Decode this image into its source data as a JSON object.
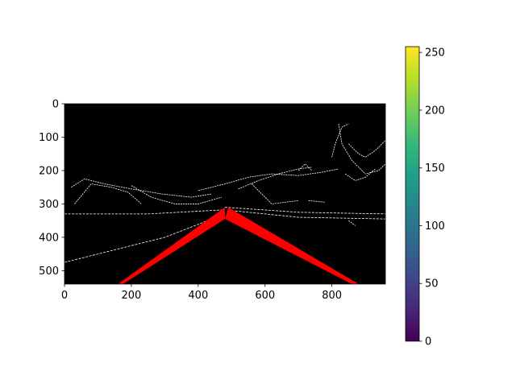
{
  "chart_data": [
    {
      "type": "heatmap",
      "title": "",
      "xlabel": "",
      "ylabel": "",
      "xlim": [
        0,
        960
      ],
      "ylim": [
        540,
        0
      ],
      "x_ticks": [
        0,
        200,
        400,
        600,
        800
      ],
      "y_ticks": [
        0,
        100,
        200,
        300,
        400,
        500
      ],
      "x_tick_labels": [
        "0",
        "200",
        "400",
        "600",
        "800"
      ],
      "y_tick_labels": [
        "0",
        "100",
        "200",
        "300",
        "400",
        "500"
      ],
      "background_color": "#000000",
      "edge_color": "#ffffff",
      "overlay": {
        "type": "line",
        "color": "#ff0000",
        "segments": [
          {
            "x": [
              160,
              480
            ],
            "y": [
              540,
              310
            ]
          },
          {
            "x": [
              175,
              480
            ],
            "y": [
              540,
              345
            ]
          },
          {
            "x": [
              490,
              880
            ],
            "y": [
              310,
              540
            ]
          },
          {
            "x": [
              480,
              860
            ],
            "y": [
              345,
              540
            ]
          },
          {
            "x": [
              500,
              630
            ],
            "y": [
              345,
              395
            ]
          }
        ]
      },
      "edge_segments": [
        {
          "x": [
            0,
            300,
            480
          ],
          "y": [
            475,
            400,
            330
          ]
        },
        {
          "x": [
            0,
            250,
            470
          ],
          "y": [
            330,
            330,
            318
          ]
        },
        {
          "x": [
            480,
            700,
            960
          ],
          "y": [
            310,
            325,
            330
          ]
        },
        {
          "x": [
            500,
            700,
            960
          ],
          "y": [
            320,
            340,
            345
          ]
        },
        {
          "x": [
            20,
            60,
            120,
            200,
            290,
            380,
            440
          ],
          "y": [
            250,
            225,
            240,
            255,
            270,
            280,
            270
          ]
        },
        {
          "x": [
            30,
            80,
            140,
            190,
            230
          ],
          "y": [
            300,
            240,
            250,
            265,
            300
          ]
        },
        {
          "x": [
            200,
            260,
            330,
            400,
            470
          ],
          "y": [
            245,
            280,
            300,
            300,
            280
          ]
        },
        {
          "x": [
            400,
            480,
            550,
            620,
            700,
            770,
            820
          ],
          "y": [
            260,
            240,
            220,
            210,
            215,
            205,
            195
          ]
        },
        {
          "x": [
            520,
            580,
            640,
            700,
            740
          ],
          "y": [
            255,
            230,
            210,
            195,
            190
          ]
        },
        {
          "x": [
            820,
            830,
            860,
            900,
            940,
            960
          ],
          "y": [
            60,
            120,
            170,
            210,
            200,
            180
          ]
        },
        {
          "x": [
            800,
            810,
            830,
            850
          ],
          "y": [
            160,
            120,
            70,
            60
          ]
        },
        {
          "x": [
            850,
            880,
            900,
            930,
            960
          ],
          "y": [
            120,
            150,
            160,
            140,
            110
          ]
        },
        {
          "x": [
            700,
            720,
            740
          ],
          "y": [
            200,
            180,
            200
          ]
        },
        {
          "x": [
            840,
            870,
            900,
            930
          ],
          "y": [
            210,
            230,
            220,
            195
          ]
        },
        {
          "x": [
            560,
            620,
            700
          ],
          "y": [
            240,
            300,
            290
          ]
        },
        {
          "x": [
            730,
            780
          ],
          "y": [
            290,
            295
          ]
        },
        {
          "x": [
            850,
            870
          ],
          "y": [
            350,
            365
          ]
        }
      ]
    },
    {
      "type": "colorbar",
      "colormap": "viridis",
      "colors": [
        "#440154",
        "#482878",
        "#3e4989",
        "#31688e",
        "#26828e",
        "#1f9e89",
        "#35b779",
        "#6ece58",
        "#b5de2b",
        "#fde725"
      ],
      "range": [
        0,
        255
      ],
      "ticks": [
        0,
        50,
        100,
        150,
        200,
        250
      ],
      "tick_labels": [
        "0",
        "50",
        "100",
        "150",
        "200",
        "250"
      ]
    }
  ]
}
